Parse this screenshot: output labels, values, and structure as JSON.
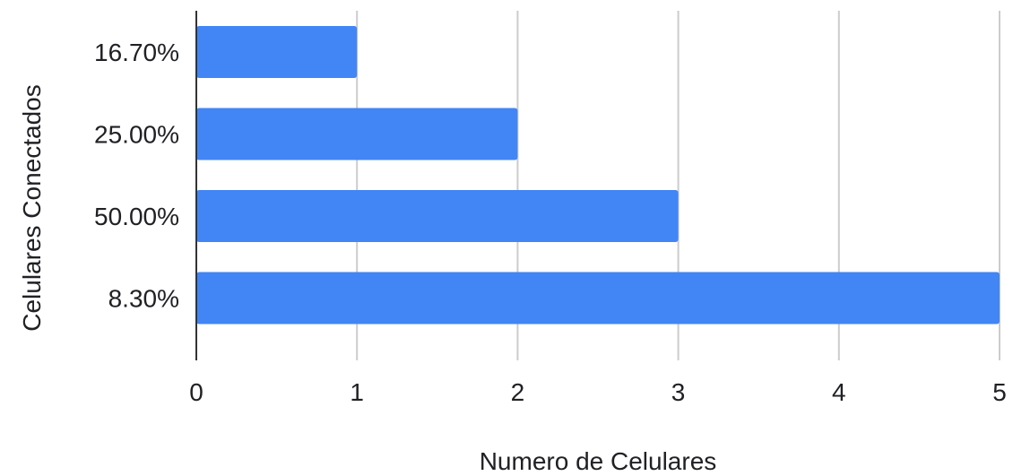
{
  "chart_data": {
    "type": "bar",
    "orientation": "horizontal",
    "categories": [
      "16.70%",
      "25.00%",
      "50.00%",
      "8.30%"
    ],
    "values": [
      1,
      2,
      3,
      5
    ],
    "xlabel": "Numero de Celulares",
    "ylabel": "Celulares Conectados",
    "xlim": [
      0,
      5
    ],
    "xticks": [
      "0",
      "1",
      "2",
      "3",
      "4",
      "5"
    ],
    "grid": true,
    "legend": "none",
    "bar_color": "#4285F4",
    "grid_color": "#cccccc",
    "axis_color": "#333333"
  }
}
